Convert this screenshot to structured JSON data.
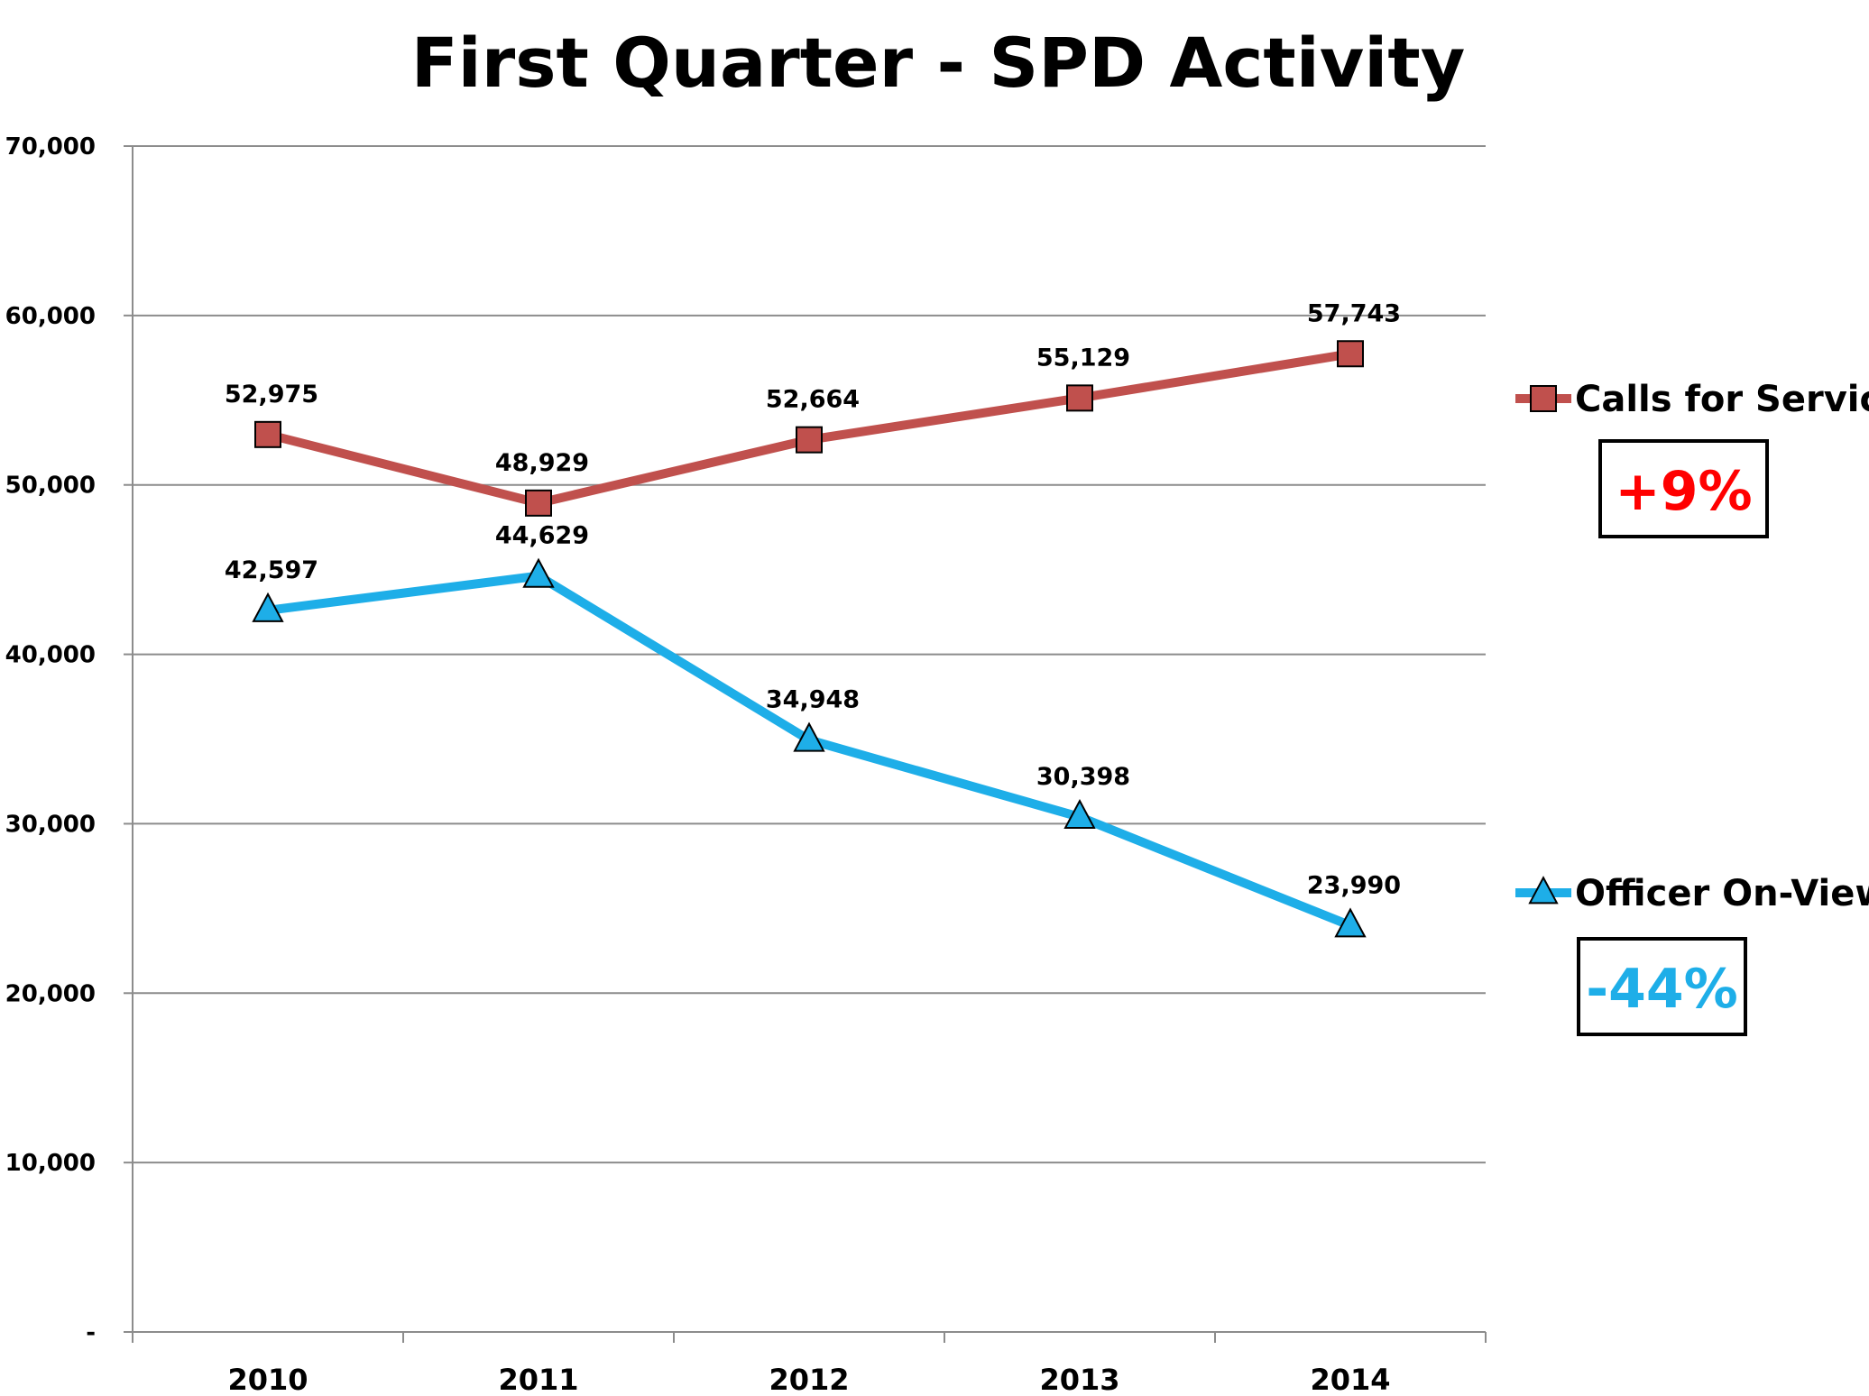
{
  "chart_data": {
    "type": "line",
    "title": "First Quarter - SPD Activity",
    "xlabel": "",
    "ylabel": "",
    "categories": [
      "2010",
      "2011",
      "2012",
      "2013",
      "2014"
    ],
    "ylim": [
      0,
      70000
    ],
    "yticks": [
      {
        "value": 0,
        "label": "-"
      },
      {
        "value": 10000,
        "label": "10,000"
      },
      {
        "value": 20000,
        "label": "20,000"
      },
      {
        "value": 30000,
        "label": "30,000"
      },
      {
        "value": 40000,
        "label": "40,000"
      },
      {
        "value": 50000,
        "label": "50,000"
      },
      {
        "value": 60000,
        "label": "60,000"
      },
      {
        "value": 70000,
        "label": "70,000"
      }
    ],
    "grid": true,
    "legend_position": "right",
    "series": [
      {
        "name": "Calls for Service",
        "values": [
          52975,
          48929,
          52664,
          55129,
          57743
        ],
        "labels": [
          "52,975",
          "48,929",
          "52,664",
          "55,129",
          "57,743"
        ],
        "marker": "square",
        "color": "#C0504D",
        "change": "+9%",
        "change_color": "#FF0000"
      },
      {
        "name": "Officer On-View",
        "values": [
          42597,
          44629,
          34948,
          30398,
          23990
        ],
        "labels": [
          "42,597",
          "44,629",
          "34,948",
          "30,398",
          "23,990"
        ],
        "marker": "triangle",
        "color": "#1EAEE8",
        "change": "-44%",
        "change_color": "#1EAEE8"
      }
    ]
  }
}
